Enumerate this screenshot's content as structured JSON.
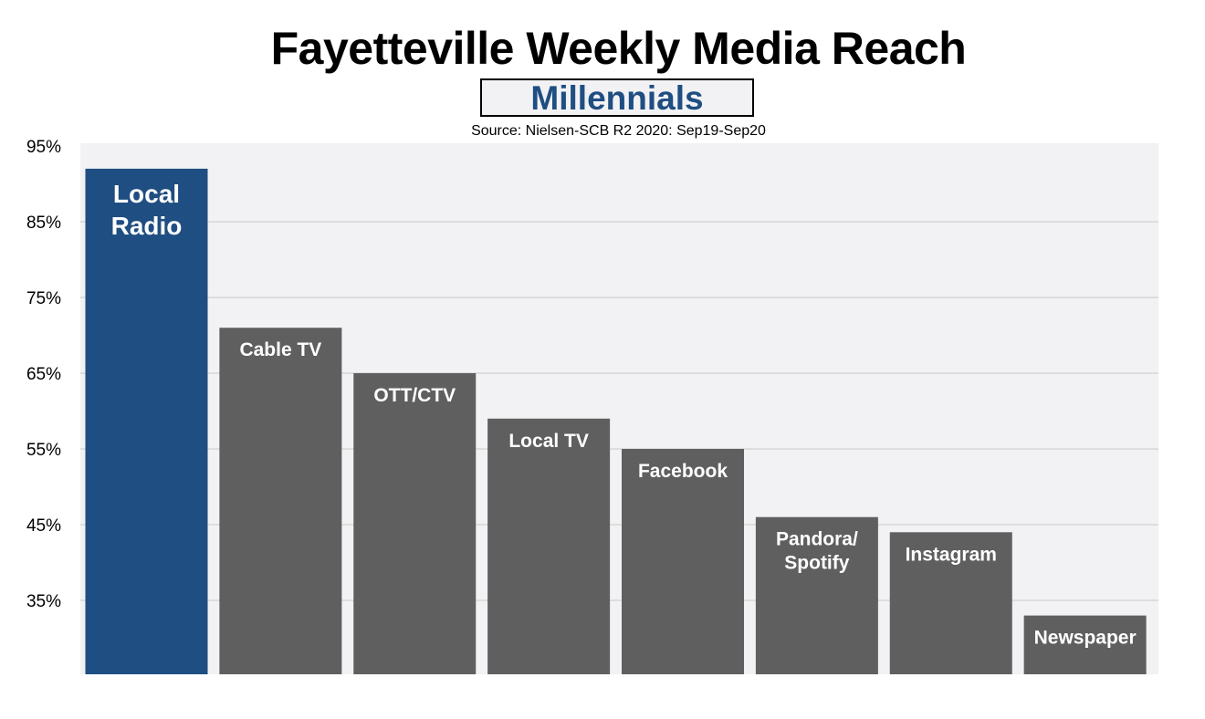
{
  "chart_data": {
    "type": "bar",
    "title": "Fayetteville Weekly Media Reach",
    "subtitle": "Millennials",
    "source": "Source: Nielsen-SCB R2 2020: Sep19-Sep20",
    "xlabel": "",
    "ylabel": "",
    "ylim": [
      25,
      95
    ],
    "yticks": [
      "95%",
      "85%",
      "75%",
      "65%",
      "55%",
      "45%",
      "35%"
    ],
    "ytick_values": [
      95,
      85,
      75,
      65,
      55,
      45,
      35
    ],
    "grid": true,
    "categories": [
      "Local Radio",
      "Cable TV",
      "OTT/CTV",
      "Local TV",
      "Facebook",
      "Pandora/ Spotify",
      "Instagram",
      "Newspaper"
    ],
    "label_lines": [
      [
        "Local",
        "Radio"
      ],
      [
        "Cable TV"
      ],
      [
        "OTT/CTV"
      ],
      [
        "Local TV"
      ],
      [
        "Facebook"
      ],
      [
        "Pandora/",
        "Spotify"
      ],
      [
        "Instagram"
      ],
      [
        "Newspaper"
      ]
    ],
    "values": [
      92,
      71,
      65,
      59,
      55,
      46,
      44,
      33
    ],
    "colors": [
      "#1f4e82",
      "#5f5f5f",
      "#5f5f5f",
      "#5f5f5f",
      "#5f5f5f",
      "#5f5f5f",
      "#5f5f5f",
      "#5f5f5f"
    ],
    "plot_background": "#f2f2f4",
    "gridline_color": "#c8c8c8"
  }
}
